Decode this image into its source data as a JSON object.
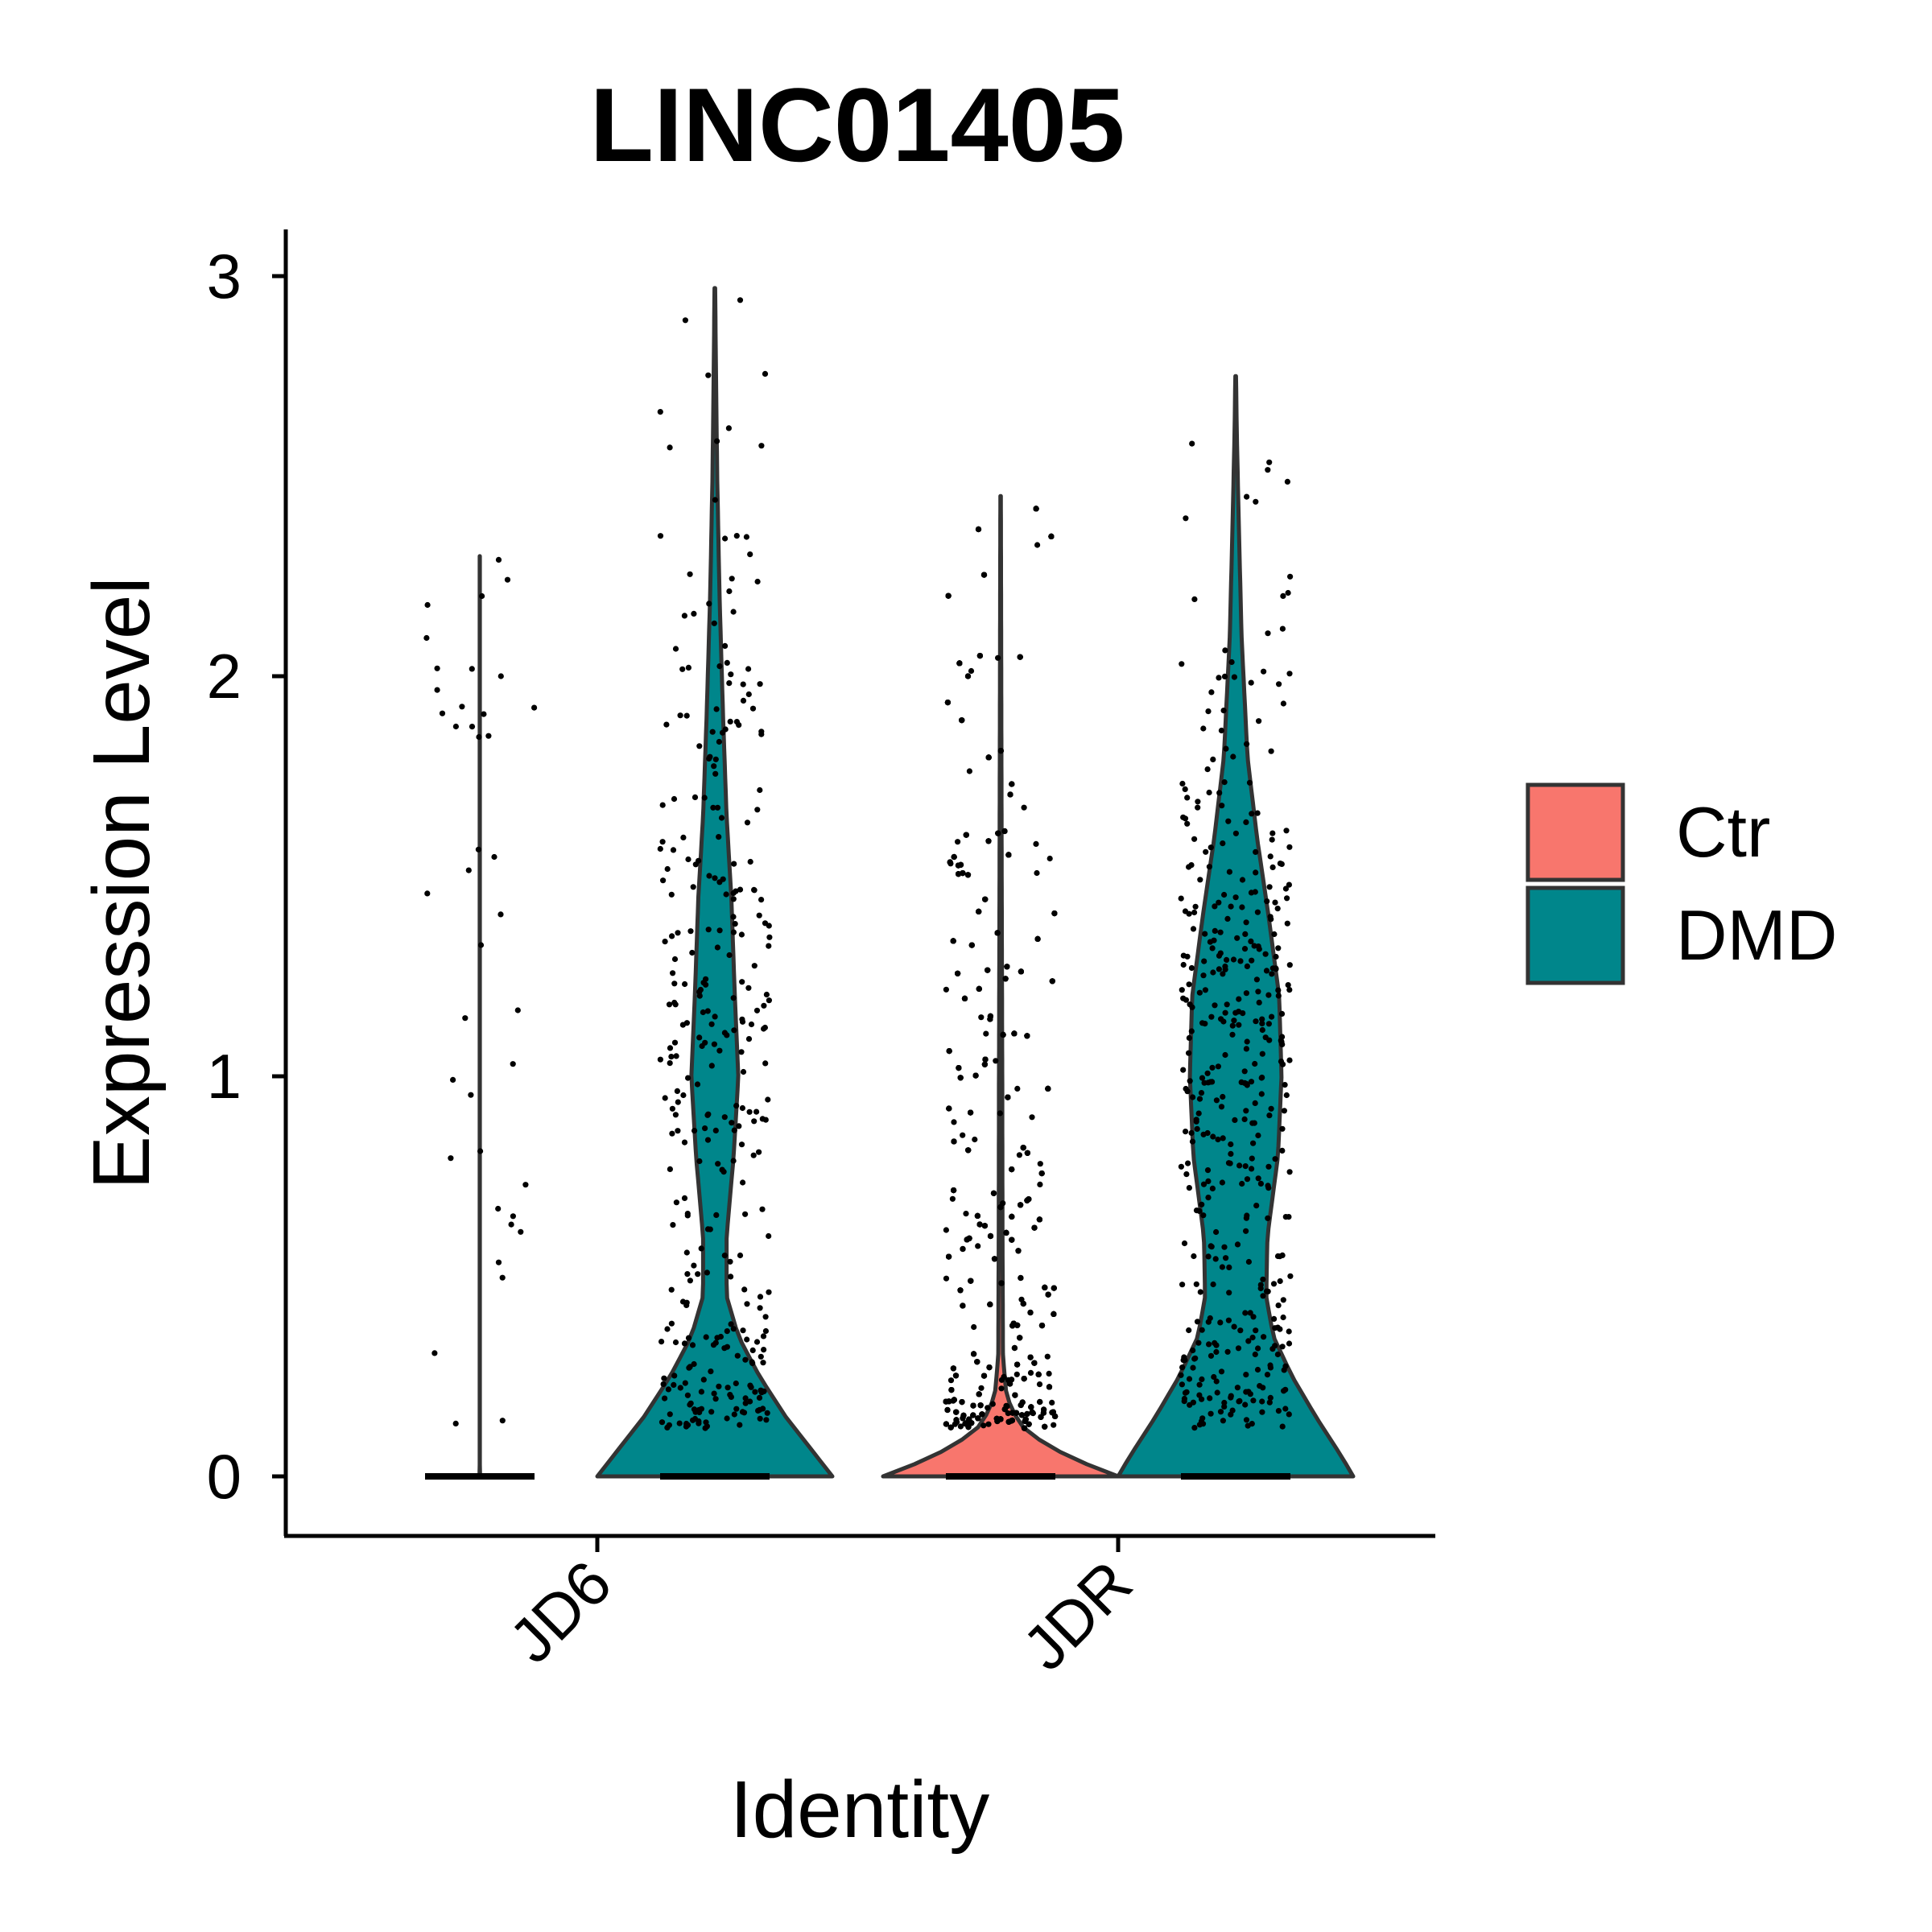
{
  "chart_data": {
    "type": "violin",
    "title": "LINC01405",
    "xlabel": "Identity",
    "ylabel": "Expression Level",
    "ylim": [
      -0.15,
      3.1
    ],
    "yticks": [
      "0",
      "1",
      "2",
      "3"
    ],
    "categories": [
      "JD6",
      "JDR"
    ],
    "legend": {
      "position": "right",
      "entries": [
        {
          "label": "Ctr",
          "color": "#F8766D"
        },
        {
          "label": "DMD",
          "color": "#00868B"
        }
      ]
    },
    "violins": [
      {
        "category": "JD6",
        "group": "Ctr",
        "max": 2.3,
        "zero_spike": true,
        "profile": [
          [
            0,
            0.003
          ],
          [
            0.02,
            0.001
          ],
          [
            0.05,
            0.0005
          ],
          [
            2.3,
            0.0005
          ]
        ],
        "n_points": 40
      },
      {
        "category": "JD6",
        "group": "DMD",
        "max": 2.97,
        "profile": [
          [
            0,
            1.0
          ],
          [
            0.06,
            0.84
          ],
          [
            0.15,
            0.6
          ],
          [
            0.25,
            0.38
          ],
          [
            0.35,
            0.2
          ],
          [
            0.45,
            0.1
          ],
          [
            0.6,
            0.1
          ],
          [
            0.8,
            0.16
          ],
          [
            1.0,
            0.2
          ],
          [
            1.2,
            0.17
          ],
          [
            1.45,
            0.14
          ],
          [
            1.65,
            0.1
          ],
          [
            1.9,
            0.07
          ],
          [
            2.2,
            0.04
          ],
          [
            2.5,
            0.02
          ],
          [
            2.8,
            0.008
          ],
          [
            2.97,
            0.003
          ]
        ],
        "n_points": 330
      },
      {
        "category": "JDR",
        "group": "Ctr",
        "max": 2.45,
        "profile": [
          [
            0,
            1.0
          ],
          [
            0.04,
            0.65
          ],
          [
            0.08,
            0.38
          ],
          [
            0.13,
            0.16
          ],
          [
            0.2,
            0.05
          ],
          [
            0.3,
            0.02
          ],
          [
            0.6,
            0.016
          ],
          [
            1.0,
            0.014
          ],
          [
            1.4,
            0.01
          ],
          [
            1.8,
            0.007
          ],
          [
            2.2,
            0.004
          ],
          [
            2.45,
            0.002
          ]
        ],
        "n_points": 1000
      },
      {
        "category": "JDR",
        "group": "DMD",
        "max": 2.75,
        "profile": [
          [
            0,
            1.0
          ],
          [
            0.05,
            0.9
          ],
          [
            0.15,
            0.68
          ],
          [
            0.25,
            0.48
          ],
          [
            0.35,
            0.32
          ],
          [
            0.45,
            0.26
          ],
          [
            0.6,
            0.27
          ],
          [
            0.8,
            0.36
          ],
          [
            1.0,
            0.39
          ],
          [
            1.2,
            0.37
          ],
          [
            1.4,
            0.28
          ],
          [
            1.6,
            0.18
          ],
          [
            1.8,
            0.1
          ],
          [
            2.1,
            0.05
          ],
          [
            2.4,
            0.025
          ],
          [
            2.6,
            0.01
          ],
          [
            2.75,
            0.003
          ]
        ],
        "n_points": 430
      }
    ]
  }
}
